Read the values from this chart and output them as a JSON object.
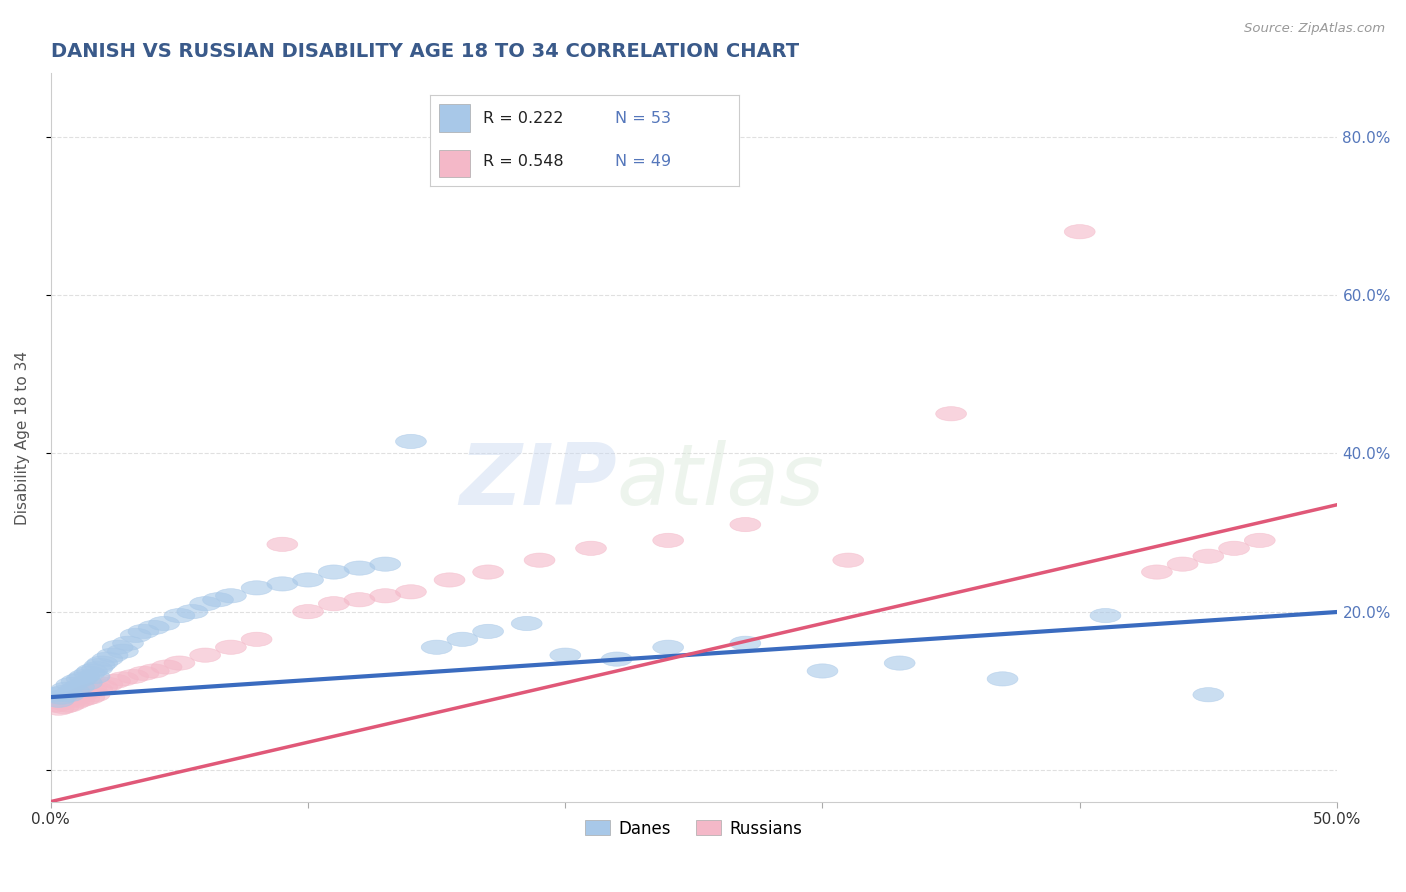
{
  "title": "DANISH VS RUSSIAN DISABILITY AGE 18 TO 34 CORRELATION CHART",
  "source": "Source: ZipAtlas.com",
  "ylabel": "Disability Age 18 to 34",
  "xlim": [
    0.0,
    0.5
  ],
  "ylim": [
    -0.04,
    0.88
  ],
  "dane_color": "#a8c8e8",
  "russian_color": "#f4b8c8",
  "dane_line_color": "#3a6bbf",
  "russian_line_color": "#e05878",
  "R_dane": 0.222,
  "N_dane": 53,
  "R_russian": 0.548,
  "N_russian": 49,
  "title_color": "#3a5a8a",
  "source_color": "#999999",
  "legend_label_danes": "Danes",
  "legend_label_russians": "Russians",
  "grid_color": "#cccccc",
  "background_color": "#ffffff",
  "tick_label_color": "#5577bb",
  "dane_intercept": 0.092,
  "dane_slope": 0.215,
  "russian_intercept": -0.04,
  "russian_slope": 0.75,
  "danes_x": [
    0.002,
    0.003,
    0.004,
    0.005,
    0.006,
    0.007,
    0.008,
    0.009,
    0.01,
    0.011,
    0.012,
    0.013,
    0.014,
    0.015,
    0.016,
    0.017,
    0.018,
    0.019,
    0.02,
    0.022,
    0.024,
    0.026,
    0.028,
    0.03,
    0.033,
    0.036,
    0.04,
    0.044,
    0.05,
    0.055,
    0.06,
    0.065,
    0.07,
    0.08,
    0.09,
    0.1,
    0.11,
    0.12,
    0.13,
    0.14,
    0.15,
    0.16,
    0.17,
    0.185,
    0.2,
    0.22,
    0.24,
    0.27,
    0.3,
    0.33,
    0.37,
    0.41,
    0.45
  ],
  "danes_y": [
    0.095,
    0.088,
    0.092,
    0.098,
    0.102,
    0.095,
    0.108,
    0.1,
    0.112,
    0.105,
    0.115,
    0.118,
    0.11,
    0.122,
    0.125,
    0.118,
    0.128,
    0.132,
    0.135,
    0.14,
    0.145,
    0.155,
    0.15,
    0.16,
    0.17,
    0.175,
    0.18,
    0.185,
    0.195,
    0.2,
    0.21,
    0.215,
    0.22,
    0.23,
    0.235,
    0.24,
    0.25,
    0.255,
    0.26,
    0.415,
    0.155,
    0.165,
    0.175,
    0.185,
    0.145,
    0.14,
    0.155,
    0.16,
    0.125,
    0.135,
    0.115,
    0.195,
    0.095
  ],
  "russians_x": [
    0.002,
    0.003,
    0.004,
    0.005,
    0.006,
    0.007,
    0.008,
    0.009,
    0.01,
    0.011,
    0.012,
    0.013,
    0.014,
    0.015,
    0.016,
    0.017,
    0.018,
    0.02,
    0.022,
    0.025,
    0.028,
    0.032,
    0.036,
    0.04,
    0.045,
    0.05,
    0.06,
    0.07,
    0.08,
    0.09,
    0.1,
    0.11,
    0.12,
    0.13,
    0.14,
    0.155,
    0.17,
    0.19,
    0.21,
    0.24,
    0.27,
    0.31,
    0.35,
    0.4,
    0.43,
    0.44,
    0.45,
    0.46,
    0.47
  ],
  "russians_y": [
    0.082,
    0.078,
    0.085,
    0.08,
    0.088,
    0.082,
    0.09,
    0.085,
    0.092,
    0.088,
    0.095,
    0.09,
    0.098,
    0.092,
    0.1,
    0.095,
    0.102,
    0.105,
    0.108,
    0.112,
    0.115,
    0.118,
    0.122,
    0.125,
    0.13,
    0.135,
    0.145,
    0.155,
    0.165,
    0.285,
    0.2,
    0.21,
    0.215,
    0.22,
    0.225,
    0.24,
    0.25,
    0.265,
    0.28,
    0.29,
    0.31,
    0.265,
    0.45,
    0.68,
    0.25,
    0.26,
    0.27,
    0.28,
    0.29
  ]
}
